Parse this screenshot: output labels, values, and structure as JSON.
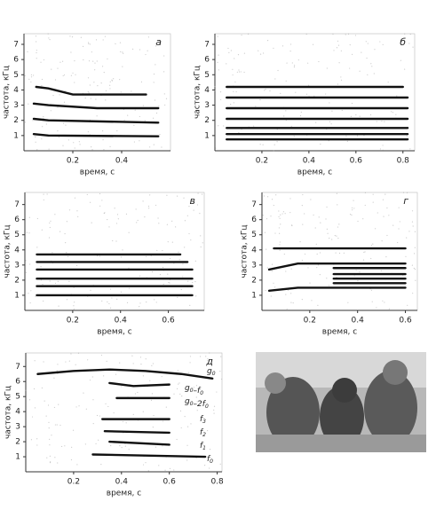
{
  "panels": [
    {
      "type": "line",
      "label": "а",
      "ylabel": "частота, кГц",
      "xlabel": "время, с",
      "xlim": [
        0,
        0.6
      ],
      "ylim": [
        0,
        7.7
      ],
      "xticks": [
        0.2,
        0.4
      ],
      "yticks": [
        1,
        2,
        3,
        4,
        5,
        6,
        7
      ],
      "series": [
        {
          "x": [
            0.04,
            0.1,
            0.55
          ],
          "values": [
            1.1,
            1.0,
            0.95
          ]
        },
        {
          "x": [
            0.04,
            0.1,
            0.55
          ],
          "values": [
            2.1,
            2.0,
            1.85
          ]
        },
        {
          "x": [
            0.04,
            0.1,
            0.3,
            0.55
          ],
          "values": [
            3.1,
            3.0,
            2.8,
            2.8
          ]
        },
        {
          "x": [
            0.05,
            0.1,
            0.2,
            0.5
          ],
          "values": [
            4.2,
            4.1,
            3.7,
            3.7
          ]
        }
      ]
    },
    {
      "type": "line",
      "label": "б",
      "ylabel": "частота, кГц",
      "xlabel": "время, с",
      "xlim": [
        0,
        0.85
      ],
      "ylim": [
        0,
        7.7
      ],
      "xticks": [
        0.2,
        0.4,
        0.6,
        0.8
      ],
      "yticks": [
        1,
        2,
        3,
        4,
        5,
        6,
        7
      ],
      "series": [
        {
          "x": [
            0.05,
            0.82
          ],
          "values": [
            0.75,
            0.75
          ]
        },
        {
          "x": [
            0.05,
            0.82
          ],
          "values": [
            1.1,
            1.1
          ]
        },
        {
          "x": [
            0.05,
            0.82
          ],
          "values": [
            1.5,
            1.5
          ]
        },
        {
          "x": [
            0.05,
            0.82
          ],
          "values": [
            2.1,
            2.1
          ]
        },
        {
          "x": [
            0.05,
            0.82
          ],
          "values": [
            2.8,
            2.8
          ]
        },
        {
          "x": [
            0.05,
            0.82
          ],
          "values": [
            3.5,
            3.5
          ]
        },
        {
          "x": [
            0.05,
            0.8
          ],
          "values": [
            4.2,
            4.2
          ]
        }
      ]
    },
    {
      "type": "line",
      "label": "в",
      "ylabel": "частота, кГц",
      "xlabel": "время, с",
      "xlim": [
        0,
        0.75
      ],
      "ylim": [
        0,
        7.8
      ],
      "xticks": [
        0.2,
        0.4,
        0.6
      ],
      "yticks": [
        1,
        2,
        3,
        4,
        5,
        6,
        7
      ],
      "series": [
        {
          "x": [
            0.05,
            0.7
          ],
          "values": [
            1.0,
            1.0
          ]
        },
        {
          "x": [
            0.05,
            0.7
          ],
          "values": [
            1.6,
            1.6
          ]
        },
        {
          "x": [
            0.05,
            0.7
          ],
          "values": [
            2.1,
            2.1
          ]
        },
        {
          "x": [
            0.05,
            0.7
          ],
          "values": [
            2.7,
            2.7
          ]
        },
        {
          "x": [
            0.05,
            0.68
          ],
          "values": [
            3.2,
            3.2
          ]
        },
        {
          "x": [
            0.05,
            0.65
          ],
          "values": [
            3.7,
            3.7
          ]
        }
      ]
    },
    {
      "type": "line",
      "label": "г",
      "ylabel": "частота, кГц",
      "xlabel": "время, с",
      "xlim": [
        0,
        0.65
      ],
      "ylim": [
        0,
        7.8
      ],
      "xticks": [
        0.2,
        0.4,
        0.6
      ],
      "yticks": [
        1,
        2,
        3,
        4,
        5,
        6,
        7
      ],
      "series": [
        {
          "x": [
            0.03,
            0.15,
            0.6
          ],
          "values": [
            1.3,
            1.5,
            1.5
          ]
        },
        {
          "x": [
            0.03,
            0.15,
            0.3
          ],
          "values": [
            2.7,
            3.1,
            3.1
          ]
        },
        {
          "x": [
            0.3,
            0.6
          ],
          "values": [
            1.8,
            1.8
          ]
        },
        {
          "x": [
            0.3,
            0.6
          ],
          "values": [
            2.1,
            2.1
          ]
        },
        {
          "x": [
            0.3,
            0.6
          ],
          "values": [
            2.4,
            2.4
          ]
        },
        {
          "x": [
            0.3,
            0.6
          ],
          "values": [
            2.8,
            2.8
          ]
        },
        {
          "x": [
            0.3,
            0.6
          ],
          "values": [
            3.1,
            3.1
          ]
        },
        {
          "x": [
            0.05,
            0.6
          ],
          "values": [
            4.1,
            4.1
          ]
        }
      ]
    },
    {
      "type": "line",
      "label": "д",
      "ylabel": "частота, кГц",
      "xlabel": "время, с",
      "xlim": [
        0,
        0.82
      ],
      "ylim": [
        0,
        7.9
      ],
      "xticks": [
        0.2,
        0.4,
        0.6,
        0.8
      ],
      "yticks": [
        1,
        2,
        3,
        4,
        5,
        6,
        7
      ],
      "series": [
        {
          "x": [
            0.05,
            0.2,
            0.35,
            0.5,
            0.65,
            0.78
          ],
          "values": [
            6.5,
            6.7,
            6.8,
            6.7,
            6.5,
            6.2
          ]
        },
        {
          "x": [
            0.35,
            0.45,
            0.6
          ],
          "values": [
            5.9,
            5.7,
            5.8
          ]
        },
        {
          "x": [
            0.38,
            0.6
          ],
          "values": [
            4.9,
            4.9
          ]
        },
        {
          "x": [
            0.32,
            0.6
          ],
          "values": [
            3.5,
            3.5
          ]
        },
        {
          "x": [
            0.33,
            0.6
          ],
          "values": [
            2.7,
            2.6
          ]
        },
        {
          "x": [
            0.35,
            0.6
          ],
          "values": [
            2.0,
            1.8
          ]
        },
        {
          "x": [
            0.28,
            0.75
          ],
          "values": [
            1.15,
            1.0
          ]
        }
      ],
      "annotations": [
        [
          [
            "g",
            "0"
          ]
        ],
        [
          [
            "g",
            "0"
          ],
          [
            "–f",
            "0"
          ]
        ],
        [
          [
            "g",
            "0"
          ],
          [
            "–2f",
            "0"
          ]
        ],
        [
          [
            "f",
            "3"
          ]
        ],
        [
          [
            "f",
            "2"
          ]
        ],
        [
          [
            "f",
            "1"
          ]
        ],
        [
          [
            "f",
            "0"
          ]
        ]
      ]
    }
  ]
}
